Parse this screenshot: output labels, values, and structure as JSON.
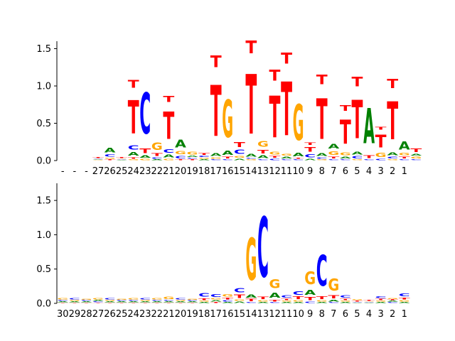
{
  "colors": {
    "A": "#008000",
    "C": "#0000ff",
    "G": "#ffa500",
    "T": "#ff0000",
    "axis": "#000000"
  },
  "chart_data": [
    {
      "type": "sequence-logo",
      "title": "",
      "ylim": [
        0,
        1.6
      ],
      "yticks": [
        "0.0",
        "0.5",
        "1.0",
        "1.5"
      ],
      "xtick_labels": [
        "-",
        "-",
        "-",
        "27",
        "26",
        "25",
        "24",
        "23",
        "22",
        "21",
        "20",
        "19",
        "18",
        "17",
        "16",
        "15",
        "14",
        "13",
        "12",
        "11",
        "10",
        "9",
        "8",
        "7",
        "6",
        "5",
        "4",
        "3",
        "2",
        "1"
      ],
      "positions": [
        [],
        [],
        [],
        [
          [
            "G",
            0.01
          ],
          [
            "A",
            0.01
          ],
          [
            "C",
            0.01
          ],
          [
            "T",
            0.02
          ]
        ],
        [
          [
            "T",
            0.02
          ],
          [
            "G",
            0.02
          ],
          [
            "C",
            0.05
          ],
          [
            "A",
            0.1
          ]
        ],
        [
          [
            "A",
            0.01
          ],
          [
            "C",
            0.01
          ],
          [
            "G",
            0.01
          ],
          [
            "T",
            0.02
          ]
        ],
        [
          [
            "G",
            0.02
          ],
          [
            "T",
            0.03
          ],
          [
            "A",
            0.08
          ],
          [
            "C",
            0.09
          ],
          [
            "T",
            0.72
          ],
          [
            "T",
            0.17
          ]
        ],
        [
          [
            "G",
            0.03
          ],
          [
            "A",
            0.05
          ],
          [
            "T",
            0.1
          ],
          [
            "C",
            0.88
          ]
        ],
        [
          [
            "A",
            0.02
          ],
          [
            "C",
            0.03
          ],
          [
            "T",
            0.06
          ],
          [
            "G",
            0.16
          ]
        ],
        [
          [
            "G",
            0.03
          ],
          [
            "A",
            0.06
          ],
          [
            "C",
            0.08
          ],
          [
            "T",
            0.59
          ],
          [
            "T",
            0.13
          ]
        ],
        [
          [
            "T",
            0.02
          ],
          [
            "C",
            0.05
          ],
          [
            "G",
            0.07
          ],
          [
            "A",
            0.17
          ]
        ],
        [
          [
            "T",
            0.02
          ],
          [
            "C",
            0.02
          ],
          [
            "A",
            0.03
          ],
          [
            "G",
            0.06
          ]
        ],
        [
          [
            "A",
            0.02
          ],
          [
            "G",
            0.02
          ],
          [
            "C",
            0.03
          ],
          [
            "T",
            0.04
          ]
        ],
        [
          [
            "C",
            0.02
          ],
          [
            "G",
            0.03
          ],
          [
            "A",
            0.06
          ],
          [
            "T",
            1.09
          ],
          [
            "T",
            0.25
          ]
        ],
        [
          [
            "C",
            0.02
          ],
          [
            "T",
            0.04
          ],
          [
            "A",
            0.09
          ],
          [
            "G",
            0.8
          ]
        ],
        [
          [
            "A",
            0.03
          ],
          [
            "G",
            0.04
          ],
          [
            "C",
            0.09
          ],
          [
            "T",
            0.11
          ]
        ],
        [
          [
            "G",
            0.02
          ],
          [
            "C",
            0.02
          ],
          [
            "A",
            0.06
          ],
          [
            "T",
            1.28
          ],
          [
            "T",
            0.28
          ]
        ],
        [
          [
            "C",
            0.02
          ],
          [
            "A",
            0.06
          ],
          [
            "T",
            0.08
          ],
          [
            "G",
            0.12
          ]
        ],
        [
          [
            "C",
            0.03
          ],
          [
            "T",
            0.04
          ],
          [
            "G",
            0.06
          ],
          [
            "T",
            0.89
          ],
          [
            "T",
            0.24
          ]
        ],
        [
          [
            "C",
            0.02
          ],
          [
            "A",
            0.04
          ],
          [
            "G",
            0.04
          ],
          [
            "T",
            1.15
          ],
          [
            "T",
            0.24
          ]
        ],
        [
          [
            "C",
            0.02
          ],
          [
            "T",
            0.02
          ],
          [
            "A",
            0.08
          ],
          [
            "G",
            0.77
          ]
        ],
        [
          [
            "A",
            0.03
          ],
          [
            "C",
            0.07
          ],
          [
            "T",
            0.1
          ],
          [
            "T",
            0.05
          ]
        ],
        [
          [
            "G",
            0.02
          ],
          [
            "C",
            0.03
          ],
          [
            "A",
            0.06
          ],
          [
            "T",
            0.87
          ],
          [
            "T",
            0.21
          ]
        ],
        [
          [
            "C",
            0.02
          ],
          [
            "T",
            0.04
          ],
          [
            "G",
            0.08
          ],
          [
            "A",
            0.1
          ]
        ],
        [
          [
            "C",
            0.02
          ],
          [
            "A",
            0.04
          ],
          [
            "G",
            0.06
          ],
          [
            "T",
            0.52
          ],
          [
            "T",
            0.12
          ]
        ],
        [
          [
            "G",
            0.02
          ],
          [
            "C",
            0.05
          ],
          [
            "A",
            0.06
          ],
          [
            "T",
            0.82
          ],
          [
            "T",
            0.21
          ]
        ],
        [
          [
            "C",
            0.02
          ],
          [
            "T",
            0.06
          ],
          [
            "A",
            0.75
          ]
        ],
        [
          [
            "C",
            0.03
          ],
          [
            "G",
            0.09
          ],
          [
            "T",
            0.28
          ],
          [
            "T",
            0.06
          ]
        ],
        [
          [
            "G",
            0.02
          ],
          [
            "C",
            0.04
          ],
          [
            "A",
            0.06
          ],
          [
            "T",
            0.81
          ],
          [
            "T",
            0.2
          ]
        ],
        [
          [
            "C",
            0.02
          ],
          [
            "T",
            0.04
          ],
          [
            "G",
            0.05
          ],
          [
            "A",
            0.18
          ]
        ],
        [
          [
            "C",
            0.02
          ],
          [
            "G",
            0.04
          ],
          [
            "A",
            0.04
          ],
          [
            "T",
            0.08
          ]
        ]
      ]
    },
    {
      "type": "sequence-logo",
      "title": "",
      "ylim": [
        0,
        1.75
      ],
      "yticks": [
        "0.0",
        "0.5",
        "1.0",
        "1.5"
      ],
      "xtick_labels": [
        "30",
        "29",
        "28",
        "27",
        "26",
        "25",
        "24",
        "23",
        "22",
        "21",
        "20",
        "19",
        "18",
        "17",
        "16",
        "15",
        "14",
        "13",
        "12",
        "11",
        "10",
        "9",
        "8",
        "7",
        "6",
        "5",
        "4",
        "3",
        "2",
        "1"
      ],
      "positions": [
        [
          [
            "T",
            0.01
          ],
          [
            "A",
            0.02
          ],
          [
            "C",
            0.02
          ],
          [
            "G",
            0.03
          ]
        ],
        [
          [
            "T",
            0.01
          ],
          [
            "A",
            0.02
          ],
          [
            "G",
            0.02
          ],
          [
            "C",
            0.03
          ]
        ],
        [
          [
            "T",
            0.01
          ],
          [
            "A",
            0.02
          ],
          [
            "C",
            0.02
          ],
          [
            "G",
            0.02
          ]
        ],
        [
          [
            "T",
            0.01
          ],
          [
            "C",
            0.02
          ],
          [
            "A",
            0.02
          ],
          [
            "G",
            0.03
          ]
        ],
        [
          [
            "T",
            0.01
          ],
          [
            "A",
            0.02
          ],
          [
            "G",
            0.02
          ],
          [
            "C",
            0.03
          ]
        ],
        [
          [
            "T",
            0.01
          ],
          [
            "A",
            0.02
          ],
          [
            "C",
            0.02
          ],
          [
            "G",
            0.02
          ]
        ],
        [
          [
            "T",
            0.01
          ],
          [
            "A",
            0.02
          ],
          [
            "C",
            0.02
          ],
          [
            "G",
            0.03
          ]
        ],
        [
          [
            "T",
            0.01
          ],
          [
            "A",
            0.02
          ],
          [
            "G",
            0.02
          ],
          [
            "C",
            0.03
          ]
        ],
        [
          [
            "T",
            0.01
          ],
          [
            "A",
            0.02
          ],
          [
            "C",
            0.02
          ],
          [
            "G",
            0.03
          ]
        ],
        [
          [
            "T",
            0.01
          ],
          [
            "A",
            0.02
          ],
          [
            "C",
            0.02
          ],
          [
            "G",
            0.05
          ]
        ],
        [
          [
            "T",
            0.01
          ],
          [
            "A",
            0.02
          ],
          [
            "G",
            0.02
          ],
          [
            "C",
            0.03
          ]
        ],
        [
          [
            "T",
            0.01
          ],
          [
            "A",
            0.02
          ],
          [
            "C",
            0.02
          ],
          [
            "G",
            0.02
          ]
        ],
        [
          [
            "A",
            0.02
          ],
          [
            "G",
            0.02
          ],
          [
            "T",
            0.04
          ],
          [
            "C",
            0.08
          ]
        ],
        [
          [
            "T",
            0.02
          ],
          [
            "A",
            0.03
          ],
          [
            "G",
            0.03
          ],
          [
            "C",
            0.06
          ]
        ],
        [
          [
            "A",
            0.02
          ],
          [
            "C",
            0.03
          ],
          [
            "T",
            0.04
          ],
          [
            "G",
            0.05
          ]
        ],
        [
          [
            "A",
            0.03
          ],
          [
            "G",
            0.03
          ],
          [
            "T",
            0.08
          ],
          [
            "C",
            0.1
          ]
        ],
        [
          [
            "C",
            0.02
          ],
          [
            "T",
            0.05
          ],
          [
            "A",
            0.07
          ],
          [
            "G",
            0.98
          ]
        ],
        [
          [
            "A",
            0.02
          ],
          [
            "G",
            0.03
          ],
          [
            "T",
            0.05
          ],
          [
            "C",
            1.4
          ]
        ],
        [
          [
            "C",
            0.02
          ],
          [
            "T",
            0.04
          ],
          [
            "A",
            0.12
          ],
          [
            "G",
            0.2
          ]
        ],
        [
          [
            "A",
            0.02
          ],
          [
            "G",
            0.02
          ],
          [
            "T",
            0.03
          ],
          [
            "C",
            0.05
          ]
        ],
        [
          [
            "A",
            0.02
          ],
          [
            "G",
            0.03
          ],
          [
            "T",
            0.06
          ],
          [
            "C",
            0.08
          ]
        ],
        [
          [
            "C",
            0.03
          ],
          [
            "T",
            0.07
          ],
          [
            "A",
            0.12
          ],
          [
            "G",
            0.3
          ]
        ],
        [
          [
            "A",
            0.02
          ],
          [
            "G",
            0.03
          ],
          [
            "T",
            0.06
          ],
          [
            "C",
            0.72
          ]
        ],
        [
          [
            "C",
            0.02
          ],
          [
            "A",
            0.04
          ],
          [
            "T",
            0.07
          ],
          [
            "G",
            0.28
          ]
        ],
        [
          [
            "A",
            0.02
          ],
          [
            "G",
            0.02
          ],
          [
            "T",
            0.03
          ],
          [
            "C",
            0.05
          ]
        ],
        [
          [
            "A",
            0.01
          ],
          [
            "C",
            0.01
          ],
          [
            "T",
            0.02
          ],
          [
            "G",
            0.02
          ]
        ],
        [
          [
            "A",
            0.01
          ],
          [
            "C",
            0.01
          ],
          [
            "G",
            0.01
          ],
          [
            "T",
            0.02
          ]
        ],
        [
          [
            "A",
            0.02
          ],
          [
            "G",
            0.02
          ],
          [
            "T",
            0.03
          ],
          [
            "C",
            0.04
          ]
        ],
        [
          [
            "C",
            0.02
          ],
          [
            "A",
            0.02
          ],
          [
            "T",
            0.02
          ],
          [
            "G",
            0.02
          ]
        ],
        [
          [
            "A",
            0.02
          ],
          [
            "G",
            0.03
          ],
          [
            "T",
            0.04
          ],
          [
            "C",
            0.06
          ]
        ]
      ]
    }
  ]
}
